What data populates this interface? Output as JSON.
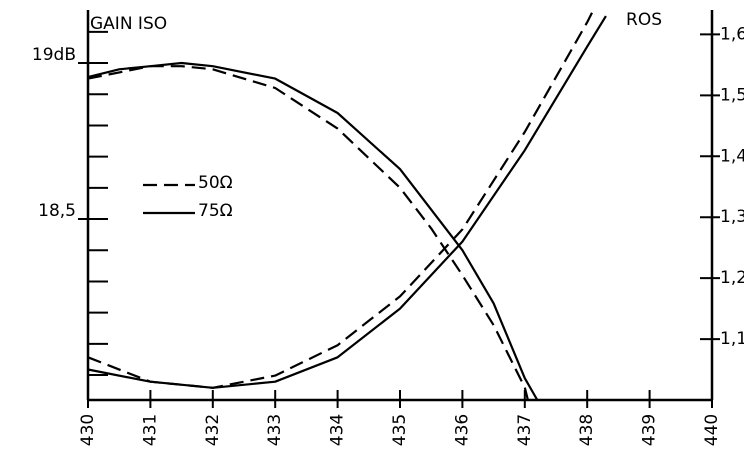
{
  "chart_data": {
    "type": "line",
    "y_axis_label": "GAIN ISO",
    "y2_axis_label": "ROS",
    "xlim": [
      430,
      440
    ],
    "xticks": [
      430,
      431,
      432,
      433,
      434,
      435,
      436,
      437,
      438,
      439,
      440
    ],
    "ylim": [
      17.92,
      19.17
    ],
    "yticks": [
      {
        "value": 18.5,
        "label": "18,5"
      },
      {
        "value": 19,
        "label": "19dB"
      }
    ],
    "y_minor_ticks": [
      18.0,
      18.1,
      18.2,
      18.3,
      18.4,
      18.6,
      18.7,
      18.8,
      18.9,
      19.1
    ],
    "y2lim": [
      1.0,
      1.64
    ],
    "y2ticks": [
      {
        "value": 1.1,
        "label": "1,1"
      },
      {
        "value": 1.2,
        "label": "1,2"
      },
      {
        "value": 1.3,
        "label": "1,3"
      },
      {
        "value": 1.4,
        "label": "1,4"
      },
      {
        "value": 1.5,
        "label": "1,5"
      },
      {
        "value": 1.6,
        "label": "1,6"
      }
    ],
    "color": "#000000",
    "legend": [
      {
        "name": "50Ω",
        "style": "dashed"
      },
      {
        "name": "75Ω",
        "style": "solid"
      }
    ],
    "series": [
      {
        "style": "solid",
        "axis": "y",
        "x": [
          430,
          430.5,
          431,
          431.5,
          432,
          433,
          434,
          435,
          436,
          436.5,
          437,
          437.2
        ],
        "values": [
          18.955,
          18.98,
          18.99,
          19.0,
          18.99,
          18.95,
          18.84,
          18.66,
          18.4,
          18.23,
          17.99,
          17.92
        ]
      },
      {
        "style": "dashed",
        "axis": "y",
        "x": [
          430,
          430.5,
          431,
          431.5,
          432,
          433,
          434,
          435,
          435.5,
          436,
          436.5,
          437,
          437.05
        ],
        "values": [
          18.95,
          18.97,
          18.99,
          18.99,
          18.98,
          18.92,
          18.79,
          18.6,
          18.47,
          18.32,
          18.16,
          17.96,
          17.92
        ]
      },
      {
        "style": "solid",
        "axis": "y2",
        "x": [
          430,
          431,
          432,
          433,
          434,
          435,
          436,
          437,
          438,
          438.3
        ],
        "values": [
          1.05,
          1.03,
          1.02,
          1.03,
          1.07,
          1.15,
          1.26,
          1.41,
          1.58,
          1.63
        ]
      },
      {
        "style": "dashed",
        "axis": "y2",
        "x": [
          430,
          431,
          432,
          433,
          434,
          435,
          436,
          437,
          438,
          438.1
        ],
        "values": [
          1.07,
          1.03,
          1.02,
          1.04,
          1.09,
          1.17,
          1.28,
          1.44,
          1.62,
          1.64
        ]
      }
    ]
  }
}
